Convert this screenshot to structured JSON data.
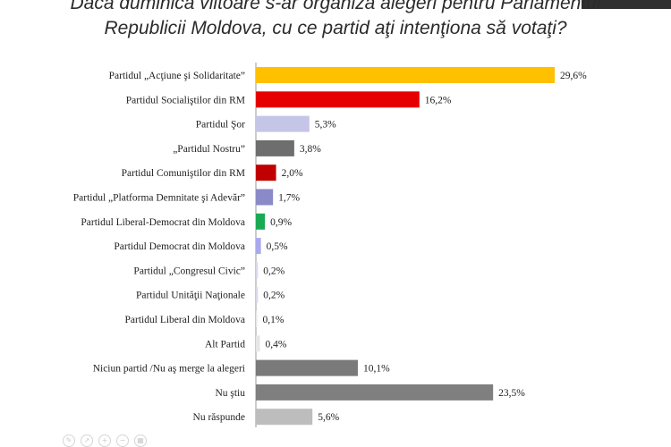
{
  "title_lines": [
    "Dacă duminica viitoare s-ar organiza alegeri pentru Parlamentul",
    "Republicii Moldova, cu ce partid aţi intenţiona să votaţi?"
  ],
  "chart_data": {
    "type": "bar",
    "orientation": "horizontal",
    "title": "Dacă duminica viitoare s-ar organiza alegeri pentru Parlamentul Republicii Moldova, cu ce partid aţi intenţiona să votaţi?",
    "xlabel": "",
    "ylabel": "",
    "xlim": [
      0,
      30
    ],
    "grid": false,
    "legend": "none",
    "categories": [
      "Partidul „Acţiune şi Solidaritate”",
      "Partidul Socialiştilor din RM",
      "Partidul Şor",
      "„Partidul Nostru”",
      "Partidul Comuniştilor din RM",
      "Partidul „Platforma Demnitate şi Adevăr”",
      "Partidul Liberal-Democrat din Moldova",
      "Partidul Democrat din Moldova",
      "Partidul „Congresul Civic”",
      "Partidul Unităţii Naţionale",
      "Partidul Liberal din Moldova",
      "Alt Partid",
      "Niciun partid /Nu aş merge la alegeri",
      "Nu ştiu",
      "Nu răspunde"
    ],
    "values": [
      29.6,
      16.2,
      5.3,
      3.8,
      2.0,
      1.7,
      0.9,
      0.5,
      0.2,
      0.2,
      0.1,
      0.4,
      10.1,
      23.5,
      5.6
    ],
    "value_labels": [
      "29,6%",
      "16,2%",
      "5,3%",
      "3,8%",
      "2,0%",
      "1,7%",
      "0,9%",
      "0,5%",
      "0,2%",
      "0,2%",
      "0,1%",
      "0,4%",
      "10,1%",
      "23,5%",
      "5,6%"
    ],
    "colors": [
      "#ffc000",
      "#e60000",
      "#c5c5e8",
      "#6e6e6e",
      "#c00000",
      "#8a8ac8",
      "#1aaa55",
      "#a9a9ee",
      "#d9d9e8",
      "#d9d9e8",
      "#e6e6ee",
      "#e6e6e6",
      "#7a7a7a",
      "#7f7f7f",
      "#bdbdbd"
    ]
  },
  "toolbar_icons": [
    "pen-icon",
    "share-icon",
    "zoom-icon",
    "zoom-out-icon",
    "grid-icon"
  ]
}
